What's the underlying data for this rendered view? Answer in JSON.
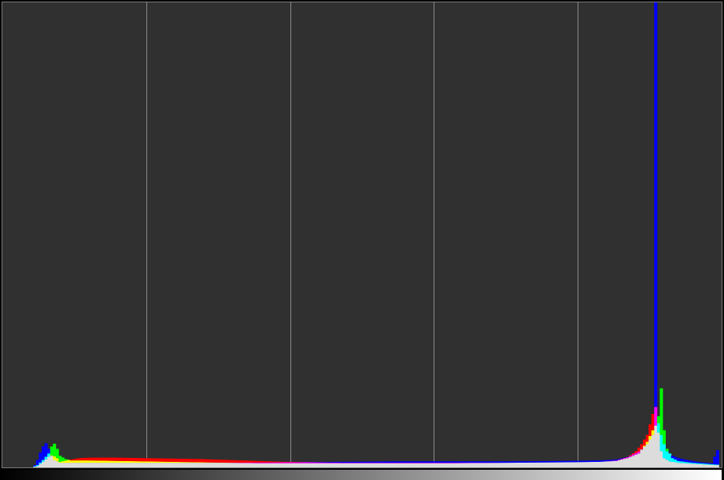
{
  "colors": {
    "background": "#303030",
    "frame": "#7a7a7a",
    "grid": "#8a8a8a",
    "overlap": "#dcdcdc",
    "red": "#ff0000",
    "green": "#00ff00",
    "blue": "#0000ff",
    "cyan": "#00ffff",
    "magenta": "#ff00ff",
    "yellow": "#ffff00"
  },
  "chart_data": {
    "type": "area",
    "title": "",
    "xlabel": "",
    "ylabel": "",
    "xlim": [
      0,
      255
    ],
    "ylim": [
      0,
      100
    ],
    "grid": "vertical",
    "x_gridlines": [
      51,
      102,
      153,
      204
    ],
    "legend": "none",
    "gradient_bar": "black-to-white",
    "series": [
      {
        "color": "red",
        "points": [
          [
            10,
            0
          ],
          [
            12,
            0.3
          ],
          [
            14,
            1.2
          ],
          [
            16,
            2.3
          ],
          [
            17,
            2.6
          ],
          [
            18,
            2.4
          ],
          [
            19,
            2.0
          ],
          [
            20,
            1.2
          ],
          [
            23,
            1.6
          ],
          [
            27,
            2.0
          ],
          [
            31,
            2.1
          ],
          [
            40,
            2.1
          ],
          [
            50,
            2.0
          ],
          [
            60,
            1.9
          ],
          [
            70,
            1.8
          ],
          [
            80,
            1.6
          ],
          [
            90,
            1.4
          ],
          [
            100,
            1.2
          ],
          [
            110,
            1.1
          ],
          [
            120,
            1.0
          ],
          [
            140,
            1.0
          ],
          [
            160,
            1.0
          ],
          [
            180,
            1.0
          ],
          [
            200,
            1.1
          ],
          [
            212,
            1.2
          ],
          [
            218,
            1.5
          ],
          [
            222,
            2.2
          ],
          [
            225,
            3.5
          ],
          [
            227,
            5.0
          ],
          [
            229,
            7.0
          ],
          [
            231,
            11.5
          ],
          [
            232,
            13.0
          ],
          [
            233,
            7.5
          ],
          [
            234,
            3.5
          ],
          [
            235,
            2.0
          ],
          [
            237,
            1.3
          ],
          [
            240,
            1.0
          ],
          [
            245,
            0.8
          ],
          [
            250,
            0.6
          ],
          [
            254,
            0.5
          ]
        ]
      },
      {
        "color": "green",
        "points": [
          [
            10,
            0
          ],
          [
            12,
            0.5
          ],
          [
            14,
            1.6
          ],
          [
            16,
            3.0
          ],
          [
            17,
            4.5
          ],
          [
            18,
            5.1
          ],
          [
            19,
            4.0
          ],
          [
            20,
            2.5
          ],
          [
            22,
            1.8
          ],
          [
            24,
            1.5
          ],
          [
            30,
            1.5
          ],
          [
            40,
            1.4
          ],
          [
            50,
            1.3
          ],
          [
            60,
            1.2
          ],
          [
            70,
            1.1
          ],
          [
            80,
            1.0
          ],
          [
            90,
            0.9
          ],
          [
            100,
            0.9
          ],
          [
            110,
            0.9
          ],
          [
            120,
            0.9
          ],
          [
            140,
            0.9
          ],
          [
            160,
            0.9
          ],
          [
            180,
            1.0
          ],
          [
            200,
            1.1
          ],
          [
            212,
            1.2
          ],
          [
            218,
            1.4
          ],
          [
            222,
            2.0
          ],
          [
            226,
            3.0
          ],
          [
            229,
            5.5
          ],
          [
            231,
            8.0
          ],
          [
            232,
            9.0
          ],
          [
            233,
            11.0
          ],
          [
            234,
            17.0
          ],
          [
            235,
            8.0
          ],
          [
            236,
            4.0
          ],
          [
            238,
            2.0
          ],
          [
            240,
            1.4
          ],
          [
            245,
            1.0
          ],
          [
            250,
            0.8
          ],
          [
            254,
            0.6
          ]
        ]
      },
      {
        "color": "blue",
        "points": [
          [
            10,
            0
          ],
          [
            11,
            0.5
          ],
          [
            12,
            1.6
          ],
          [
            13,
            3.2
          ],
          [
            14,
            4.5
          ],
          [
            15,
            5.2
          ],
          [
            16,
            4.0
          ],
          [
            17,
            2.5
          ],
          [
            18,
            1.6
          ],
          [
            20,
            1.0
          ],
          [
            30,
            1.0
          ],
          [
            40,
            1.0
          ],
          [
            50,
            1.0
          ],
          [
            60,
            1.0
          ],
          [
            80,
            1.0
          ],
          [
            100,
            1.1
          ],
          [
            120,
            1.2
          ],
          [
            140,
            1.3
          ],
          [
            160,
            1.3
          ],
          [
            180,
            1.3
          ],
          [
            200,
            1.4
          ],
          [
            212,
            1.5
          ],
          [
            218,
            1.7
          ],
          [
            222,
            2.2
          ],
          [
            226,
            3.4
          ],
          [
            229,
            5.0
          ],
          [
            231,
            7.0
          ],
          [
            232,
            100.0
          ],
          [
            233,
            9.5
          ],
          [
            234,
            7.0
          ],
          [
            235,
            5.0
          ],
          [
            236,
            3.5
          ],
          [
            238,
            2.5
          ],
          [
            240,
            2.0
          ],
          [
            244,
            1.5
          ],
          [
            248,
            1.1
          ],
          [
            252,
            0.9
          ],
          [
            254,
            3.7
          ]
        ]
      }
    ]
  }
}
